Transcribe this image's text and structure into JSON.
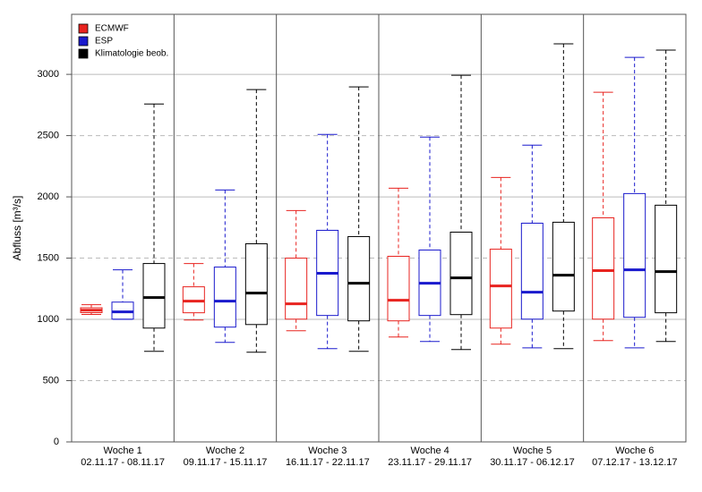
{
  "chart_data": {
    "type": "box",
    "ylabel": "Abfluss [m³/s]",
    "categories": [
      "Woche 1",
      "Woche 2",
      "Woche 3",
      "Woche 4",
      "Woche 5",
      "Woche 6"
    ],
    "date_ranges": [
      "02.11.17 - 08.11.17",
      "09.11.17 - 15.11.17",
      "16.11.17 - 22.11.17",
      "23.11.17 - 29.11.17",
      "30.11.17 - 06.12.17",
      "07.12.17 - 13.12.17"
    ],
    "ylim": [
      0,
      3490
    ],
    "yticks": [
      0,
      500,
      1000,
      1500,
      2000,
      2500,
      3000
    ],
    "grid": true,
    "legend": "top-left",
    "series": [
      {
        "name": "ECMWF",
        "color": "#e8231f",
        "min": [
          1040,
          995,
          907,
          856,
          798,
          827
        ],
        "q1": [
          1055,
          1054,
          1002,
          988,
          929,
          1002
        ],
        "median": [
          1075,
          1149,
          1127,
          1156,
          1273,
          1398
        ],
        "q3": [
          1095,
          1266,
          1500,
          1515,
          1573,
          1829
        ],
        "max": [
          1120,
          1456,
          1888,
          2071,
          2158,
          2854
        ]
      },
      {
        "name": "ESP",
        "color": "#1a1acd",
        "min": [
          1000,
          812,
          761,
          820,
          768,
          768
        ],
        "q1": [
          1002,
          937,
          1032,
          1032,
          1002,
          1017
        ],
        "median": [
          1061,
          1149,
          1376,
          1295,
          1222,
          1405
        ],
        "q3": [
          1141,
          1427,
          1727,
          1566,
          1785,
          2027
        ],
        "max": [
          1405,
          2056,
          2510,
          2488,
          2422,
          3139
        ]
      },
      {
        "name": "Klimatologie beob.",
        "color": "#000000",
        "min": [
          739,
          732,
          739,
          754,
          761,
          820
        ],
        "q1": [
          929,
          958,
          988,
          1039,
          1068,
          1054
        ],
        "median": [
          1178,
          1215,
          1295,
          1339,
          1361,
          1390
        ],
        "q3": [
          1456,
          1617,
          1676,
          1712,
          1793,
          1932
        ],
        "max": [
          2758,
          2876,
          2898,
          2993,
          3249,
          3198
        ]
      }
    ]
  }
}
